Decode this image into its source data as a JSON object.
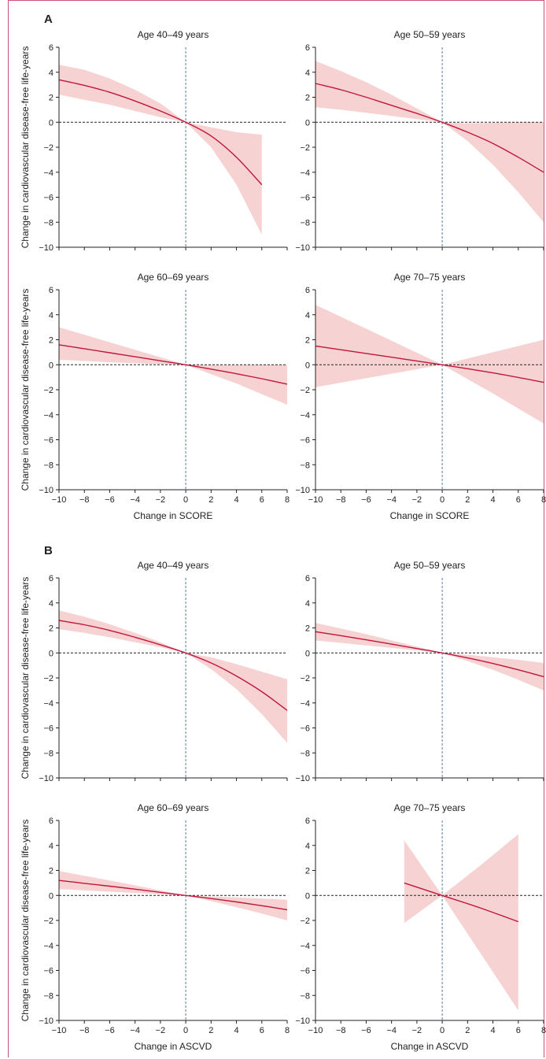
{
  "figure": {
    "colors": {
      "line": "#c0163c",
      "band": "#f6d2d2",
      "axis": "#222222",
      "vref": "#5a7ea0",
      "href": "#222222",
      "frame": "#c9547a"
    },
    "panels": [
      {
        "letter": "A",
        "x_title": "Change in SCORE"
      },
      {
        "letter": "B",
        "x_title": "Change in ASCVD"
      }
    ]
  },
  "chart_data": [
    {
      "type": "line",
      "panel": "A",
      "title": "Age 40–49 years",
      "xlabel": "",
      "ylabel": "Change in cardiovascular disease-free life-years",
      "xlim": [
        -10,
        8
      ],
      "ylim": [
        -10,
        6
      ],
      "xticks": [
        -10,
        -8,
        -6,
        -4,
        -2,
        0,
        2,
        4,
        6,
        8
      ],
      "yticks": [
        6,
        4,
        2,
        0,
        -2,
        -4,
        -6,
        -8,
        -10
      ],
      "x": [
        -10,
        -8,
        -6,
        -4,
        -2,
        0,
        2,
        4,
        6
      ],
      "y": [
        3.4,
        2.95,
        2.4,
        1.7,
        0.9,
        0,
        -1.1,
        -2.8,
        -5.0
      ],
      "lower": [
        2.2,
        1.8,
        1.4,
        0.9,
        0.4,
        0,
        -2.0,
        -5.0,
        -9.0
      ],
      "upper": [
        4.6,
        4.2,
        3.5,
        2.6,
        1.5,
        0,
        -0.4,
        -0.8,
        -1.0
      ]
    },
    {
      "type": "line",
      "panel": "A",
      "title": "Age 50–59 years",
      "xlabel": "",
      "ylabel": "",
      "xlim": [
        -10,
        8
      ],
      "ylim": [
        -10,
        6
      ],
      "xticks": [
        -10,
        -8,
        -6,
        -4,
        -2,
        0,
        2,
        4,
        6,
        8
      ],
      "yticks": [
        6,
        4,
        2,
        0,
        -2,
        -4,
        -6,
        -8,
        -10
      ],
      "x": [
        -10,
        -8,
        -6,
        -4,
        -2,
        0,
        2,
        4,
        6,
        8
      ],
      "y": [
        3.1,
        2.6,
        2.0,
        1.35,
        0.7,
        0,
        -0.8,
        -1.7,
        -2.8,
        -4.0
      ],
      "lower": [
        1.2,
        1.0,
        0.75,
        0.5,
        0.25,
        0,
        -1.5,
        -3.4,
        -5.6,
        -8.0
      ],
      "upper": [
        4.9,
        4.1,
        3.2,
        2.2,
        1.1,
        0,
        -0.1,
        -0.05,
        0,
        0
      ]
    },
    {
      "type": "line",
      "panel": "A",
      "title": "Age 60–69 years",
      "xlabel": "Change in SCORE",
      "ylabel": "Change in cardiovascular disease-free life-years",
      "xlim": [
        -10,
        8
      ],
      "ylim": [
        -10,
        6
      ],
      "xticks": [
        -10,
        -8,
        -6,
        -4,
        -2,
        0,
        2,
        4,
        6,
        8
      ],
      "yticks": [
        6,
        4,
        2,
        0,
        -2,
        -4,
        -6,
        -8,
        -10
      ],
      "x": [
        -10,
        -8,
        -6,
        -4,
        -2,
        0,
        2,
        4,
        6,
        8
      ],
      "y": [
        1.6,
        1.28,
        0.96,
        0.64,
        0.32,
        0,
        -0.35,
        -0.72,
        -1.12,
        -1.55
      ],
      "lower": [
        0.4,
        0.3,
        0.2,
        0.12,
        0.05,
        0,
        -0.75,
        -1.5,
        -2.35,
        -3.2
      ],
      "upper": [
        3.0,
        2.4,
        1.8,
        1.2,
        0.6,
        0,
        -0.02,
        -0.02,
        0,
        0
      ]
    },
    {
      "type": "line",
      "panel": "A",
      "title": "Age 70–75 years",
      "xlabel": "Change in SCORE",
      "ylabel": "",
      "xlim": [
        -10,
        8
      ],
      "ylim": [
        -10,
        6
      ],
      "xticks": [
        -10,
        -8,
        -6,
        -4,
        -2,
        0,
        2,
        4,
        6,
        8
      ],
      "yticks": [
        6,
        4,
        2,
        0,
        -2,
        -4,
        -6,
        -8,
        -10
      ],
      "x": [
        -10,
        -5,
        0,
        4,
        8
      ],
      "y": [
        1.5,
        0.75,
        0,
        -0.65,
        -1.4
      ],
      "lower": [
        -1.8,
        -0.9,
        0,
        -2.3,
        -4.7
      ],
      "upper": [
        4.8,
        2.4,
        0,
        1.0,
        2.0
      ]
    },
    {
      "type": "line",
      "panel": "B",
      "title": "Age 40–49 years",
      "xlabel": "",
      "ylabel": "Change in cardiovascular disease-free life-years",
      "xlim": [
        -10,
        8
      ],
      "ylim": [
        -10,
        6
      ],
      "xticks": [
        -10,
        -8,
        -6,
        -4,
        -2,
        0,
        2,
        4,
        6,
        8
      ],
      "yticks": [
        6,
        4,
        2,
        0,
        -2,
        -4,
        -6,
        -8,
        -10
      ],
      "x": [
        -10,
        -8,
        -6,
        -4,
        -2,
        0,
        2,
        4,
        6,
        8
      ],
      "y": [
        2.6,
        2.25,
        1.8,
        1.25,
        0.65,
        0,
        -0.8,
        -1.85,
        -3.1,
        -4.6
      ],
      "lower": [
        1.9,
        1.6,
        1.25,
        0.85,
        0.45,
        0,
        -1.3,
        -2.9,
        -4.9,
        -7.2
      ],
      "upper": [
        3.4,
        2.9,
        2.3,
        1.6,
        0.85,
        0,
        -0.35,
        -0.9,
        -1.5,
        -2.1
      ]
    },
    {
      "type": "line",
      "panel": "B",
      "title": "Age 50–59 years",
      "xlabel": "",
      "ylabel": "",
      "xlim": [
        -10,
        8
      ],
      "ylim": [
        -10,
        6
      ],
      "xticks": [
        -10,
        -8,
        -6,
        -4,
        -2,
        0,
        2,
        4,
        6,
        8
      ],
      "yticks": [
        6,
        4,
        2,
        0,
        -2,
        -4,
        -6,
        -8,
        -10
      ],
      "x": [
        -10,
        -8,
        -6,
        -4,
        -2,
        0,
        2,
        4,
        6,
        8
      ],
      "y": [
        1.7,
        1.38,
        1.05,
        0.7,
        0.35,
        0,
        -0.4,
        -0.85,
        -1.35,
        -1.9
      ],
      "lower": [
        1.0,
        0.8,
        0.6,
        0.4,
        0.2,
        0,
        -0.65,
        -1.35,
        -2.15,
        -3.0
      ],
      "upper": [
        2.4,
        1.95,
        1.5,
        1.0,
        0.5,
        0,
        -0.15,
        -0.35,
        -0.55,
        -0.8
      ]
    },
    {
      "type": "line",
      "panel": "B",
      "title": "Age 60–69 years",
      "xlabel": "Change in ASCVD",
      "ylabel": "Change in cardiovascular disease-free life-years",
      "xlim": [
        -10,
        8
      ],
      "ylim": [
        -10,
        6
      ],
      "xticks": [
        -10,
        -8,
        -6,
        -4,
        -2,
        0,
        2,
        4,
        6,
        8
      ],
      "yticks": [
        6,
        4,
        2,
        0,
        -2,
        -4,
        -6,
        -8,
        -10
      ],
      "x": [
        -10,
        -8,
        -6,
        -4,
        -2,
        0,
        2,
        4,
        6,
        8
      ],
      "y": [
        1.2,
        0.97,
        0.74,
        0.5,
        0.25,
        0,
        -0.25,
        -0.52,
        -0.82,
        -1.15
      ],
      "lower": [
        0.5,
        0.4,
        0.3,
        0.2,
        0.1,
        0,
        -0.45,
        -0.95,
        -1.45,
        -2.0
      ],
      "upper": [
        1.95,
        1.58,
        1.2,
        0.8,
        0.4,
        0,
        -0.08,
        -0.16,
        -0.25,
        -0.35
      ]
    },
    {
      "type": "line",
      "panel": "B",
      "title": "Age 70–75 years",
      "xlabel": "Change in ASCVD",
      "ylabel": "",
      "xlim": [
        -10,
        8
      ],
      "ylim": [
        -10,
        6
      ],
      "xticks": [
        -10,
        -8,
        -6,
        -4,
        -2,
        0,
        2,
        4,
        6,
        8
      ],
      "yticks": [
        6,
        4,
        2,
        0,
        -2,
        -4,
        -6,
        -8,
        -10
      ],
      "x": [
        -3,
        0,
        3,
        6
      ],
      "y": [
        1.0,
        0,
        -1.0,
        -2.1
      ],
      "lower": [
        -2.2,
        0,
        -4.6,
        -9.2
      ],
      "upper": [
        4.4,
        0,
        2.4,
        4.9
      ]
    }
  ]
}
